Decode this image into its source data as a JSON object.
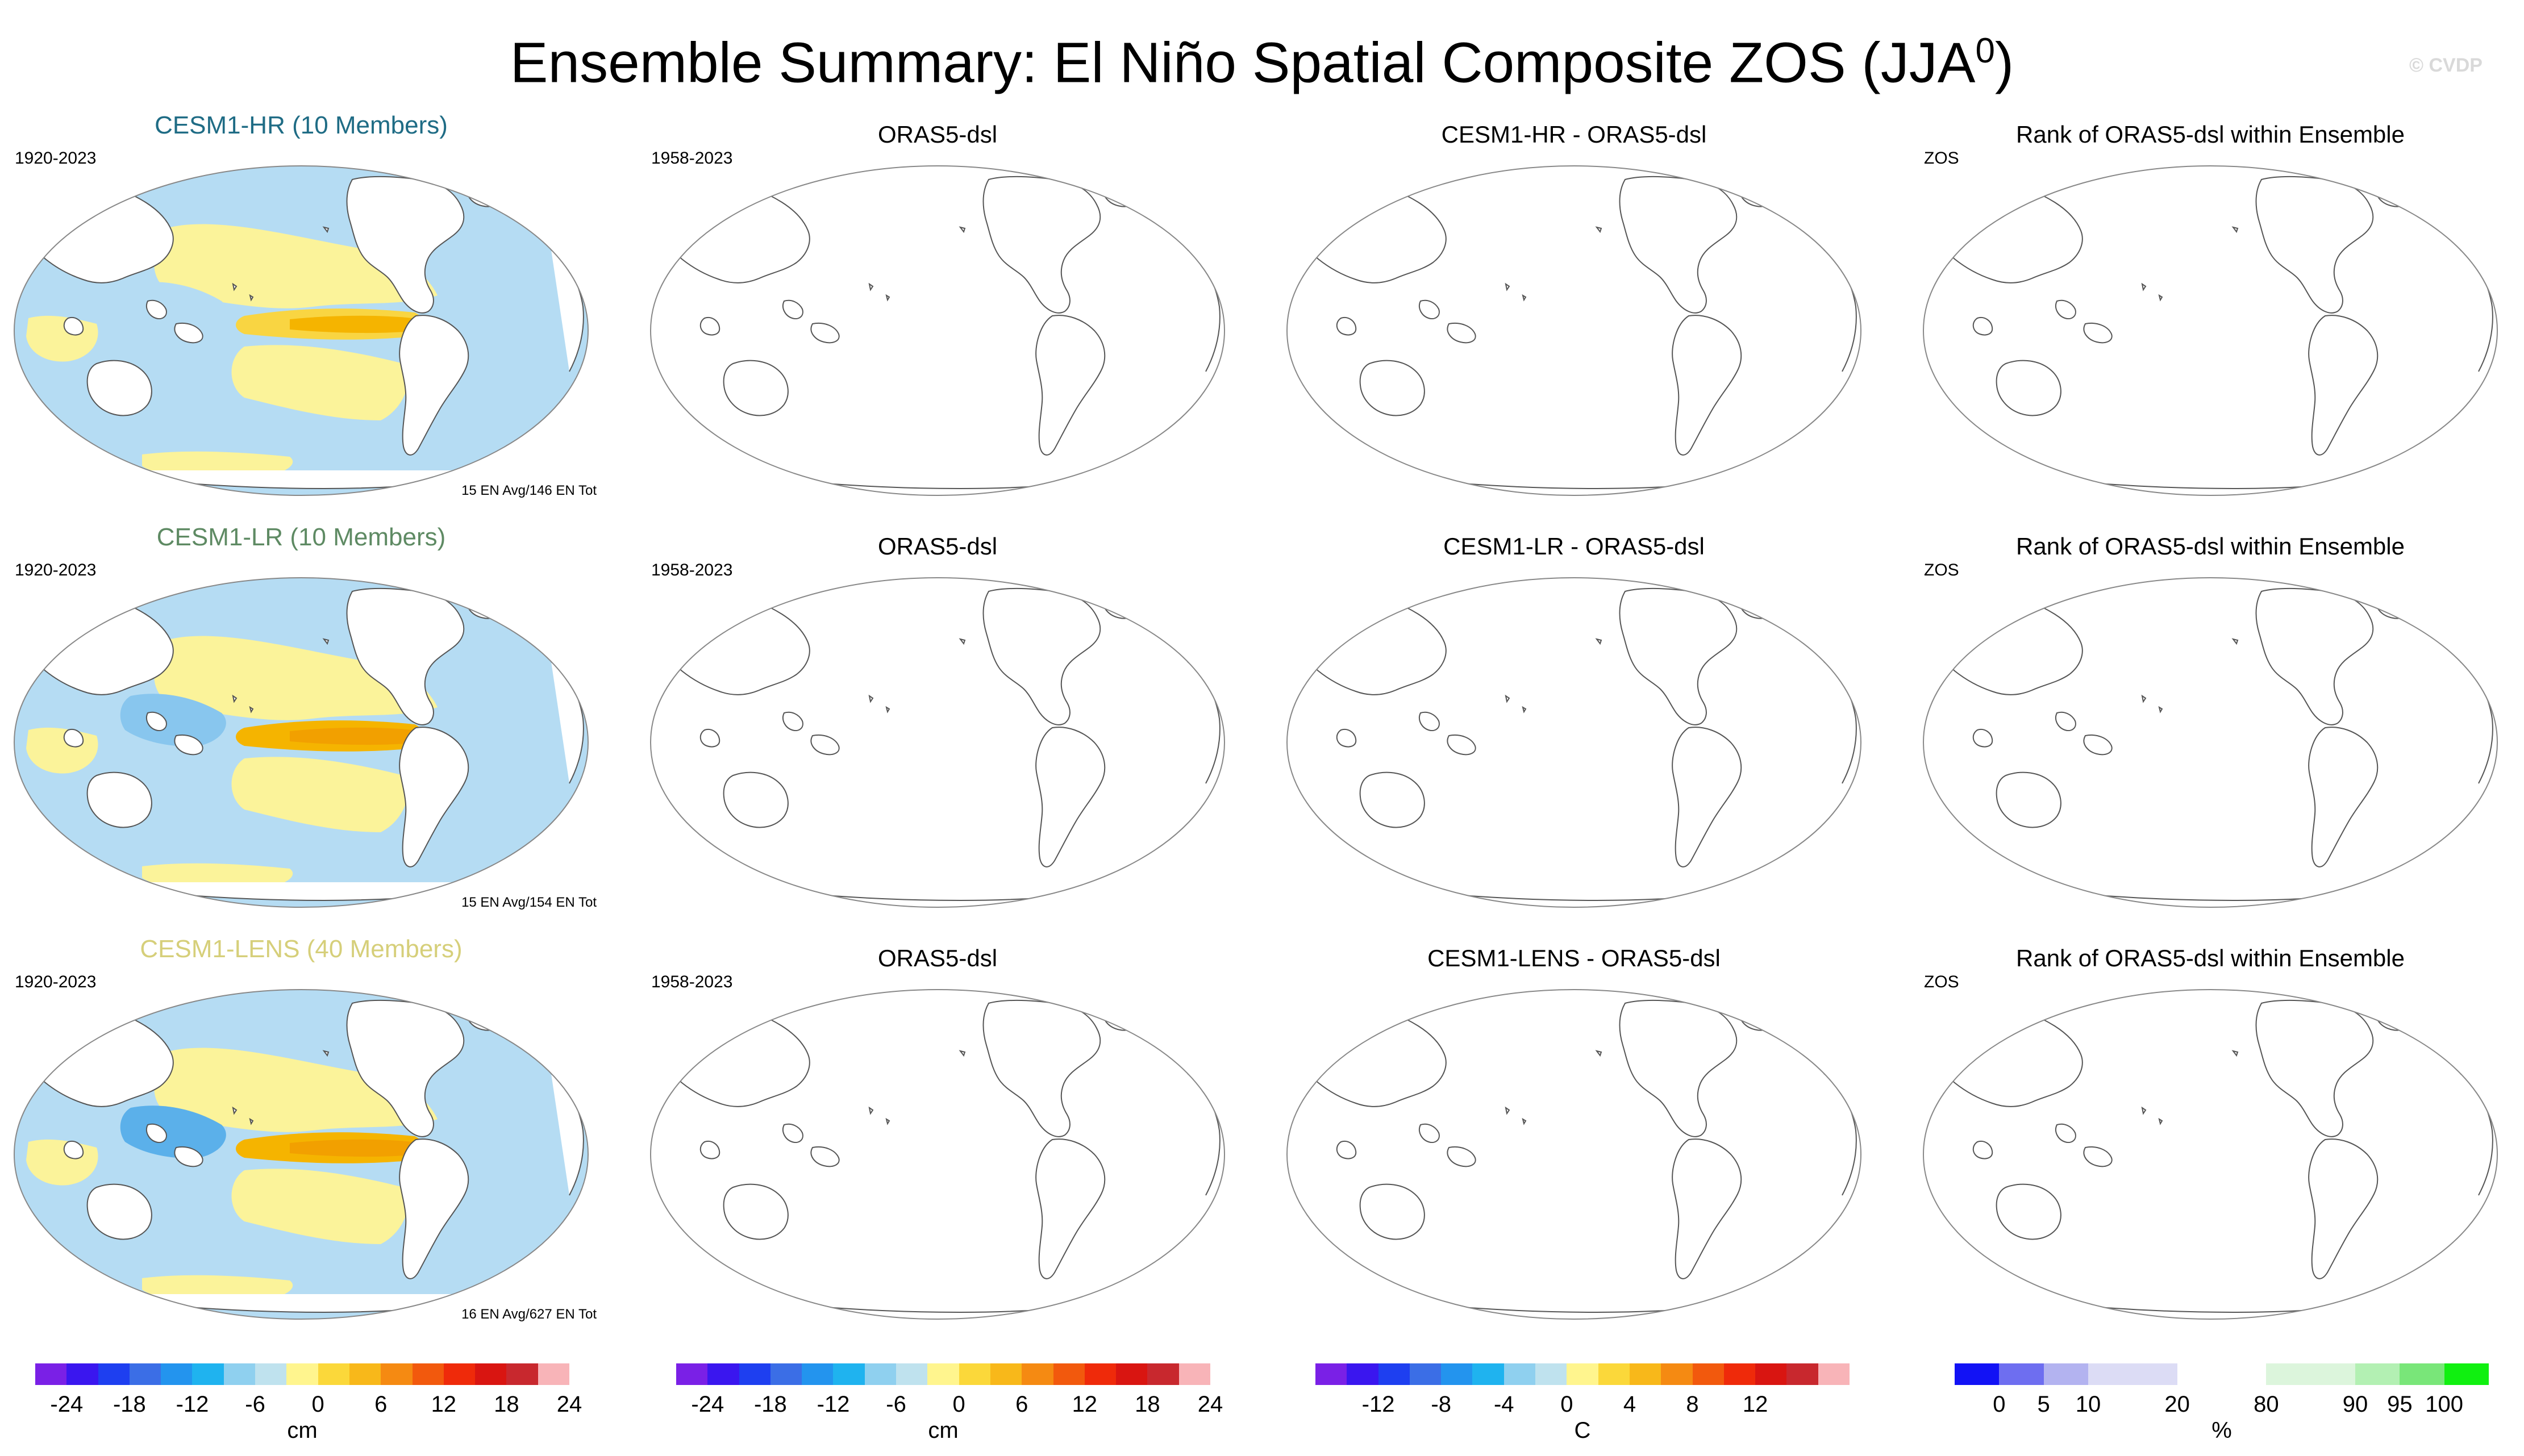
{
  "title": "Ensemble Summary: El Niño Spatial Composite ZOS (JJA",
  "title_sup": "0",
  "title_close": ")",
  "watermark": "© CVDP",
  "colors": {
    "ocean_blue": "#b5dcf3",
    "ocean_blue2": "#88c6ee",
    "ocean_blue3": "#5bb0ea",
    "ocean_yellow": "#fbf39a",
    "ocean_gold": "#f9d542",
    "ocean_orange": "#f5b400",
    "land": "#ffffff",
    "coast": "#555555"
  },
  "rows": [
    {
      "model": "CESM1-HR (10 Members)",
      "model_color": "#1f6c85",
      "years": "1920-2023",
      "ensemble_note": "15 EN Avg/146 EN Tot",
      "obs_title": "ORAS5-dsl",
      "obs_years": "1958-2023",
      "diff_title": "CESM1-HR - ORAS5-dsl",
      "rank_title": "Rank of ORAS5-dsl within Ensemble",
      "rank_label": "ZOS"
    },
    {
      "model": "CESM1-LR (10 Members)",
      "model_color": "#5e8a63",
      "years": "1920-2023",
      "ensemble_note": "15 EN Avg/154 EN Tot",
      "obs_title": "ORAS5-dsl",
      "obs_years": "1958-2023",
      "diff_title": "CESM1-LR - ORAS5-dsl",
      "rank_title": "Rank of ORAS5-dsl within Ensemble",
      "rank_label": "ZOS"
    },
    {
      "model": "CESM1-LENS (40 Members)",
      "model_color": "#d6cf7a",
      "years": "1920-2023",
      "ensemble_note": "16 EN Avg/627 EN Tot",
      "obs_title": "ORAS5-dsl",
      "obs_years": "1958-2023",
      "diff_title": "CESM1-LENS - ORAS5-dsl",
      "rank_title": "Rank of ORAS5-dsl within Ensemble",
      "rank_label": "ZOS"
    }
  ],
  "chart_data": [
    {
      "type": "colorbar",
      "unit": "cm",
      "colors": [
        "#7a20e6",
        "#3a16ef",
        "#1e3ff0",
        "#3b6ee6",
        "#2394ee",
        "#1fb3ef",
        "#8fd0ef",
        "#bfe2ee",
        "#fff58e",
        "#fbd83a",
        "#f8b81a",
        "#f58a12",
        "#f2590d",
        "#ef2a0a",
        "#d91511",
        "#c8282e",
        "#f8b4b8"
      ],
      "ticks": [
        "-24",
        "-18",
        "-12",
        "-6",
        "0",
        "6",
        "12",
        "18",
        "24"
      ],
      "tick_positions": [
        1,
        3,
        5,
        7,
        9,
        11,
        13,
        15,
        17
      ]
    },
    {
      "type": "colorbar",
      "unit": "cm",
      "colors": [
        "#7a20e6",
        "#3a16ef",
        "#1e3ff0",
        "#3b6ee6",
        "#2394ee",
        "#1fb3ef",
        "#8fd0ef",
        "#bfe2ee",
        "#fff58e",
        "#fbd83a",
        "#f8b81a",
        "#f58a12",
        "#f2590d",
        "#ef2a0a",
        "#d91511",
        "#c8282e",
        "#f8b4b8"
      ],
      "ticks": [
        "-24",
        "-18",
        "-12",
        "-6",
        "0",
        "6",
        "12",
        "18",
        "24"
      ],
      "tick_positions": [
        1,
        3,
        5,
        7,
        9,
        11,
        13,
        15,
        17
      ]
    },
    {
      "type": "colorbar",
      "unit": "C",
      "colors": [
        "#7a20e6",
        "#3a16ef",
        "#1e3ff0",
        "#3b6ee6",
        "#2394ee",
        "#1fb3ef",
        "#8fd0ef",
        "#bfe2ee",
        "#fff58e",
        "#fbd83a",
        "#f8b81a",
        "#f58a12",
        "#f2590d",
        "#ef2a0a",
        "#d91511",
        "#c8282e",
        "#f8b4b8"
      ],
      "ticks": [
        "-12",
        "-8",
        "-4",
        "0",
        "4",
        "8",
        "12"
      ],
      "tick_positions": [
        2,
        4,
        6,
        8,
        10,
        12,
        14
      ]
    },
    {
      "type": "colorbar",
      "unit": "%",
      "colors": [
        "#1212f5",
        "#6e6ef0",
        "#b3b3f0",
        "#dcdcf5",
        "#dcdcf5",
        "#ffffff",
        "#ffffff",
        "#dcf5dc",
        "#dcf5dc",
        "#b3f0b3",
        "#79e679",
        "#10f010"
      ],
      "ticks": [
        "0",
        "5",
        "10",
        "20",
        "80",
        "90",
        "95",
        "100"
      ],
      "tick_positions": [
        1,
        2,
        3,
        5,
        7,
        9,
        10,
        11
      ]
    }
  ]
}
